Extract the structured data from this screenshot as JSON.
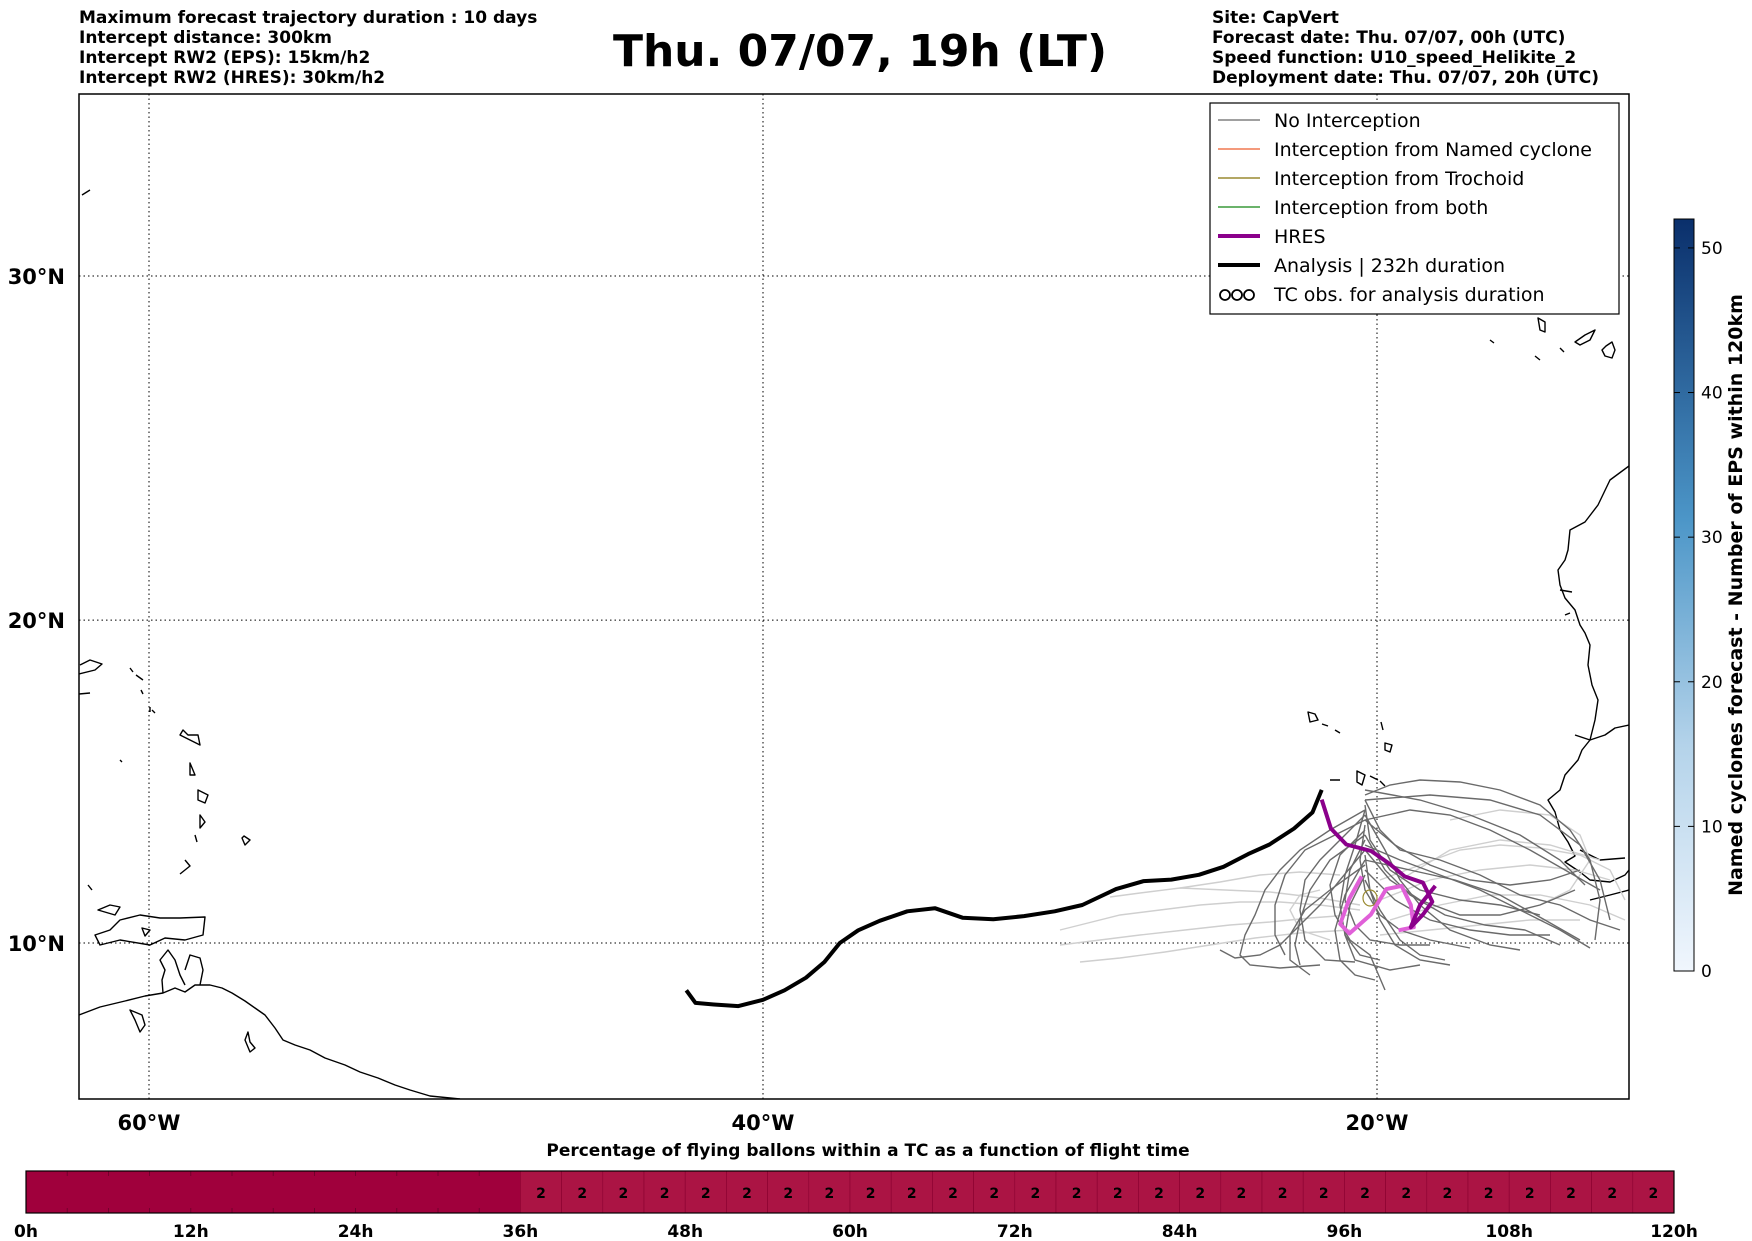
{
  "header_left": [
    "Maximum forecast trajectory duration : 10 days",
    "Intercept distance: 300km",
    "Intercept RW2 (EPS):  15km/h2",
    "Intercept RW2 (HRES): 30km/h2"
  ],
  "header_right": [
    "Site: CapVert",
    "Forecast date: Thu. 07/07, 00h (UTC)",
    "Speed function: U10_speed_Helikite_2",
    "Deployment date: Thu. 07/07, 20h (UTC)"
  ],
  "title": "Thu. 07/07, 19h (LT)",
  "map": {
    "lat_ticks": [
      {
        "label": "30°N",
        "lat": 30
      },
      {
        "label": "20°N",
        "lat": 20
      },
      {
        "label": "10°N",
        "lat": 10
      }
    ],
    "lon_ticks": [
      {
        "label": "60°W",
        "lon": -60
      },
      {
        "label": "40°W",
        "lon": -40
      },
      {
        "label": "20°W",
        "lon": -20
      }
    ],
    "extent": {
      "lon_min": -65,
      "lon_max": -15,
      "lat_min": 5.5,
      "lat_max": 35.3
    }
  },
  "legend": [
    {
      "label": "No Interception",
      "color": "#808080",
      "style": "thin"
    },
    {
      "label": "Interception from Named cyclone",
      "color": "#f07850",
      "style": "thin"
    },
    {
      "label": "Interception from Trochoid",
      "color": "#9a8a30",
      "style": "thin"
    },
    {
      "label": "Interception from both",
      "color": "#3a9a3a",
      "style": "thin"
    },
    {
      "label": "HRES",
      "color": "#8b008b",
      "style": "thick"
    },
    {
      "label": "Analysis | 232h duration",
      "color": "#000000",
      "style": "thick"
    },
    {
      "label": "TC obs. for analysis duration",
      "color": "#000000",
      "style": "symbol"
    }
  ],
  "colorbar": {
    "label": "Named cyclones forecast - Number of EPS within 120km",
    "ticks": [
      0,
      10,
      20,
      30,
      40,
      50
    ],
    "max": 52
  },
  "timebar": {
    "title": "Percentage of flying ballons within a TC as a function of flight time",
    "tick_labels": [
      "0h",
      "12h",
      "24h",
      "36h",
      "48h",
      "60h",
      "72h",
      "84h",
      "96h",
      "108h",
      "120h"
    ],
    "cell_values": [
      "2",
      "2",
      "2",
      "2",
      "2",
      "2",
      "2",
      "2",
      "2",
      "2",
      "2",
      "2",
      "2",
      "2",
      "2",
      "2",
      "2",
      "2",
      "2",
      "2",
      "2",
      "2",
      "2",
      "2",
      "2",
      "2",
      "2",
      "2"
    ],
    "colors": {
      "base": "#a0003c",
      "valued": "#ab1444"
    }
  },
  "trajectories": {
    "analysis": [
      [
        -21.8,
        14.8
      ],
      [
        -22.1,
        14.1
      ],
      [
        -22.7,
        13.6
      ],
      [
        -23.5,
        13.1
      ],
      [
        -24.2,
        12.8
      ],
      [
        -25,
        12.4
      ],
      [
        -25.8,
        12.15
      ],
      [
        -26.7,
        12
      ],
      [
        -27.6,
        11.95
      ],
      [
        -28.5,
        11.7
      ],
      [
        -29.6,
        11.2
      ],
      [
        -30.5,
        11
      ],
      [
        -31.5,
        10.85
      ],
      [
        -32.5,
        10.75
      ],
      [
        -33.5,
        10.8
      ],
      [
        -34.4,
        11.1
      ],
      [
        -35.3,
        11
      ],
      [
        -36.2,
        10.7
      ],
      [
        -36.9,
        10.4
      ],
      [
        -37.5,
        10
      ],
      [
        -38,
        9.4
      ],
      [
        -38.6,
        8.9
      ],
      [
        -39.3,
        8.5
      ],
      [
        -40,
        8.2
      ],
      [
        -40.8,
        8
      ],
      [
        -41.6,
        8.05
      ],
      [
        -42.2,
        8.1
      ],
      [
        -42.5,
        8.5
      ]
    ],
    "hres": [
      [
        -21.8,
        14.5
      ],
      [
        -21.5,
        13.6
      ],
      [
        -21,
        13.1
      ],
      [
        -20.2,
        12.9
      ],
      [
        -19.6,
        12.5
      ],
      [
        -19.1,
        12.1
      ],
      [
        -18.5,
        11.9
      ],
      [
        -18.2,
        11.3
      ],
      [
        -18.5,
        10.9
      ],
      [
        -18.9,
        10.5
      ],
      [
        -18.6,
        11.2
      ],
      [
        -18.1,
        11.8
      ]
    ],
    "hres_pink": [
      [
        -20.5,
        12.1
      ],
      [
        -20.9,
        11.4
      ],
      [
        -21.2,
        10.6
      ],
      [
        -20.9,
        10.3
      ],
      [
        -20.2,
        10.9
      ],
      [
        -19.7,
        11.7
      ],
      [
        -19.2,
        11.8
      ],
      [
        -18.9,
        11.2
      ],
      [
        -18.8,
        10.5
      ],
      [
        -19.3,
        10.4
      ]
    ]
  }
}
